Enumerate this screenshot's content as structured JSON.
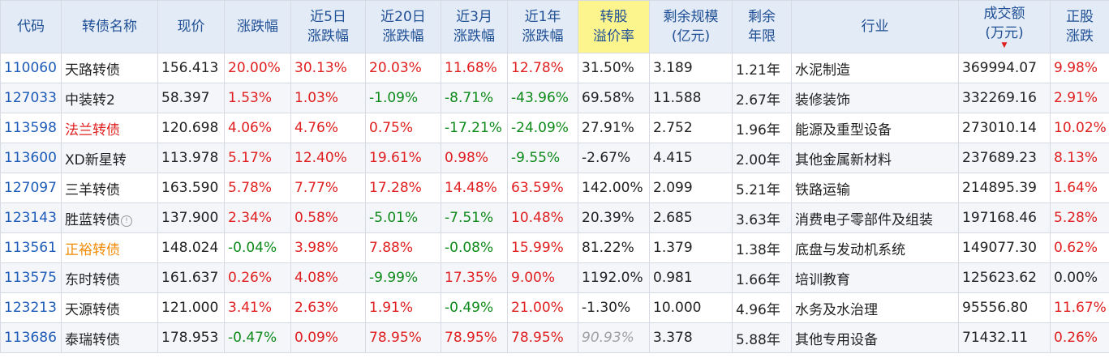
{
  "headers": [
    {
      "l1": "代码",
      "l2": ""
    },
    {
      "l1": "转债名称",
      "l2": ""
    },
    {
      "l1": "现价",
      "l2": ""
    },
    {
      "l1": "涨跌幅",
      "l2": ""
    },
    {
      "l1": "近5日",
      "l2": "涨跌幅"
    },
    {
      "l1": "近20日",
      "l2": "涨跌幅"
    },
    {
      "l1": "近3月",
      "l2": "涨跌幅"
    },
    {
      "l1": "近1年",
      "l2": "涨跌幅"
    },
    {
      "l1": "转股",
      "l2": "溢价率"
    },
    {
      "l1": "剩余规模",
      "l2": "(亿元)"
    },
    {
      "l1": "剩余",
      "l2": "年限"
    },
    {
      "l1": "行业",
      "l2": ""
    },
    {
      "l1": "成交额",
      "l2": "(万元)"
    },
    {
      "l1": "正股",
      "l2": "涨跌"
    }
  ],
  "sort_indicator": "▼",
  "highlight_color": "#fcf58e",
  "colors": {
    "up": "#e02020",
    "down": "#0e8a1a",
    "code": "#1d5bb8",
    "header_bg": "#e3ebf6"
  },
  "rows": [
    {
      "code": "110060",
      "name": "天路转债",
      "price": "156.413",
      "chg": "20.00%",
      "d5": "30.13%",
      "d20": "20.03%",
      "m3": "11.68%",
      "y1": "12.78%",
      "premium": "31.50%",
      "scale": "3.189",
      "years": "1.21年",
      "industry": "水泥制造",
      "amount": "369994.07",
      "stock_chg": "9.98%"
    },
    {
      "code": "127033",
      "name": "中装转2",
      "price": "58.397",
      "chg": "1.53%",
      "d5": "1.03%",
      "d20": "-1.09%",
      "m3": "-8.71%",
      "y1": "-43.96%",
      "premium": "69.58%",
      "scale": "11.588",
      "years": "2.67年",
      "industry": "装修装饰",
      "amount": "332269.16",
      "stock_chg": "2.91%"
    },
    {
      "code": "113598",
      "name": "法兰转债",
      "price": "120.698",
      "chg": "4.06%",
      "d5": "4.76%",
      "d20": "0.75%",
      "m3": "-17.21%",
      "y1": "-24.09%",
      "premium": "27.91%",
      "scale": "2.752",
      "years": "1.96年",
      "industry": "能源及重型设备",
      "amount": "273010.14",
      "stock_chg": "10.02%"
    },
    {
      "code": "113600",
      "name": "XD新星转",
      "price": "113.978",
      "chg": "5.17%",
      "d5": "12.40%",
      "d20": "19.61%",
      "m3": "0.98%",
      "y1": "-9.55%",
      "premium": "-2.67%",
      "scale": "4.415",
      "years": "2.00年",
      "industry": "其他金属新材料",
      "amount": "237689.23",
      "stock_chg": "8.13%"
    },
    {
      "code": "127097",
      "name": "三羊转债",
      "price": "163.590",
      "chg": "5.78%",
      "d5": "7.77%",
      "d20": "17.28%",
      "m3": "14.48%",
      "y1": "63.59%",
      "premium": "142.00%",
      "scale": "2.099",
      "years": "5.21年",
      "industry": "铁路运输",
      "amount": "214895.39",
      "stock_chg": "1.64%"
    },
    {
      "code": "123143",
      "name": "胜蓝转债",
      "price": "137.900",
      "chg": "2.34%",
      "d5": "0.58%",
      "d20": "-5.01%",
      "m3": "-7.51%",
      "y1": "10.48%",
      "premium": "20.39%",
      "scale": "2.685",
      "years": "3.63年",
      "industry": "消费电子零部件及组装",
      "amount": "197168.46",
      "stock_chg": "5.28%",
      "info": "!"
    },
    {
      "code": "113561",
      "name": "正裕转债",
      "price": "148.024",
      "chg": "-0.04%",
      "d5": "3.98%",
      "d20": "7.88%",
      "m3": "-0.08%",
      "y1": "15.99%",
      "premium": "81.22%",
      "scale": "1.379",
      "years": "1.38年",
      "industry": "底盘与发动机系统",
      "amount": "149077.30",
      "stock_chg": "0.62%"
    },
    {
      "code": "113575",
      "name": "东时转债",
      "price": "161.637",
      "chg": "0.26%",
      "d5": "4.08%",
      "d20": "-9.99%",
      "m3": "17.35%",
      "y1": "9.00%",
      "premium": "1192.0%",
      "scale": "0.981",
      "years": "1.66年",
      "industry": "培训教育",
      "amount": "125623.62",
      "stock_chg": "0.00%"
    },
    {
      "code": "123213",
      "name": "天源转债",
      "price": "121.000",
      "chg": "3.41%",
      "d5": "2.63%",
      "d20": "1.91%",
      "m3": "-0.49%",
      "y1": "21.00%",
      "premium": "-1.30%",
      "scale": "10.000",
      "years": "4.96年",
      "industry": "水务及水治理",
      "amount": "95556.80",
      "stock_chg": "11.67%"
    },
    {
      "code": "113686",
      "name": "泰瑞转债",
      "price": "178.953",
      "chg": "-0.47%",
      "d5": "0.09%",
      "d20": "78.95%",
      "m3": "78.95%",
      "y1": "78.95%",
      "premium": "90.93%",
      "scale": "3.378",
      "years": "5.88年",
      "industry": "其他专用设备",
      "amount": "71432.11",
      "stock_chg": "0.26%"
    }
  ]
}
